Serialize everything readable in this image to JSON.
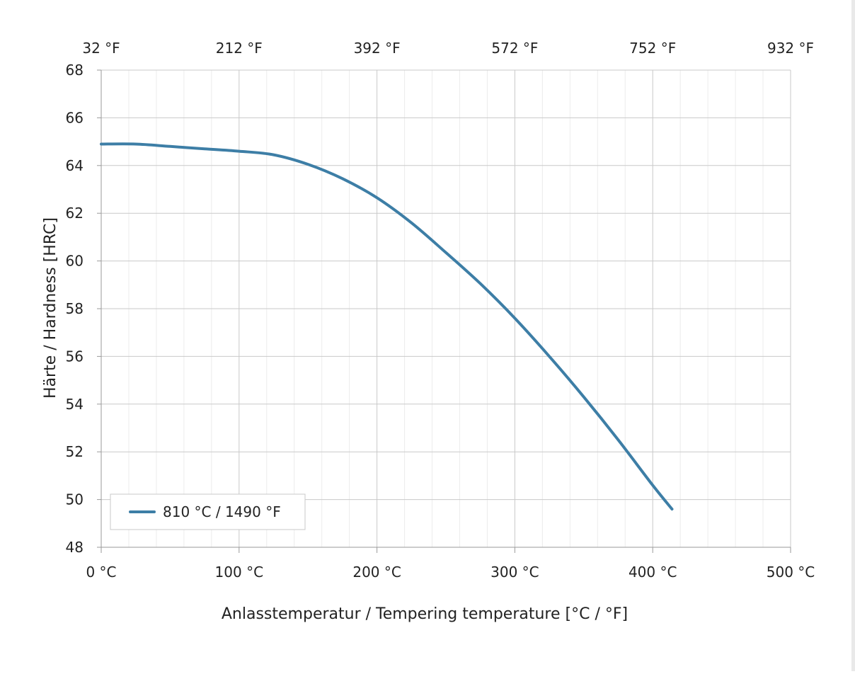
{
  "chart_data": {
    "type": "line",
    "xlabel": "Anlasstemperatur / Tempering temperature [°C / °F]",
    "ylabel": "Härte / Hardness [HRC]",
    "xlim": [
      0,
      500
    ],
    "ylim": [
      48,
      68
    ],
    "x_ticks": [
      {
        "value": 0,
        "label": "0 °C"
      },
      {
        "value": 100,
        "label": "100 °C"
      },
      {
        "value": 200,
        "label": "200 °C"
      },
      {
        "value": 300,
        "label": "300 °C"
      },
      {
        "value": 400,
        "label": "400 °C"
      },
      {
        "value": 500,
        "label": "500 °C"
      }
    ],
    "x2_ticks": [
      {
        "value": 0,
        "label": "32 °F"
      },
      {
        "value": 100,
        "label": "212 °F"
      },
      {
        "value": 200,
        "label": "392 °F"
      },
      {
        "value": 300,
        "label": "572 °F"
      },
      {
        "value": 400,
        "label": "752 °F"
      },
      {
        "value": 500,
        "label": "932 °F"
      }
    ],
    "y_ticks": [
      48,
      50,
      52,
      54,
      56,
      58,
      60,
      62,
      64,
      66,
      68
    ],
    "grid": true,
    "legend_position": "bottom-left",
    "series": [
      {
        "name": "810 °C / 1490 °F",
        "color": "#3d7ea6",
        "x": [
          0,
          25,
          50,
          75,
          100,
          125,
          150,
          175,
          200,
          225,
          250,
          275,
          300,
          325,
          350,
          375,
          400,
          414
        ],
        "y": [
          64.9,
          64.9,
          64.8,
          64.7,
          64.6,
          64.45,
          64.05,
          63.45,
          62.65,
          61.6,
          60.35,
          59.05,
          57.6,
          56.0,
          54.3,
          52.5,
          50.6,
          49.6
        ]
      }
    ]
  }
}
